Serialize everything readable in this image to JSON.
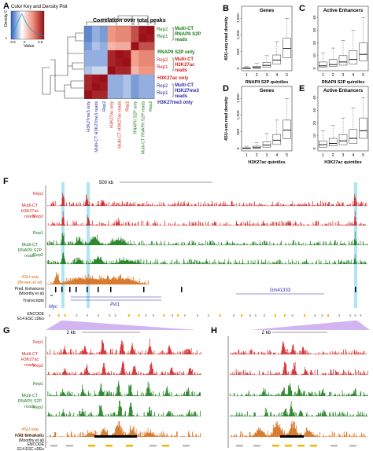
{
  "panels": {
    "A": {
      "letter": "A",
      "title": "Correlation over total peaks",
      "color_key_title": "Color Key and Density Plot",
      "color_key_xlabel": "Value",
      "color_key_ylabel": "Density",
      "color_key_ticks": [
        "-0.5",
        "0",
        "0.5"
      ],
      "density_ticks": [
        "0",
        "15"
      ],
      "row_labels": [
        "Rep2",
        "Rep1",
        "",
        "Rep2",
        "Rep1",
        "",
        "Rep2",
        "Rep1"
      ],
      "row_groups": [
        {
          "lines": [
            "Multi-CT",
            "RNAPII S2P",
            "reads"
          ],
          "color": "#1a7a1a"
        },
        {
          "lines": [
            "RNAPII S2P only"
          ],
          "color": "#1a7a1a"
        },
        {
          "lines": [
            "Multi-CT",
            "H3K27ac",
            "reads"
          ],
          "color": "#d11f1f"
        },
        {
          "lines": [
            "H3K27ac only"
          ],
          "color": "#d11f1f"
        },
        {
          "lines": [
            "Multi-CT",
            "H3K27me3",
            "reads"
          ],
          "color": "#2a2aa8"
        },
        {
          "lines": [
            "H3K27me3 only"
          ],
          "color": "#2a2aa8"
        }
      ],
      "col_labels": [
        {
          "text": "H3K27me3 only",
          "color": "#2a2aa8"
        },
        {
          "text": "Multi-CT H3K27me3 reads",
          "color": "#2a2aa8"
        },
        {
          "text": "Rep2",
          "color": "#2a2aa8"
        },
        {
          "text": "H3K27ac only",
          "color": "#d11f1f"
        },
        {
          "text": "Multi-CT H3K27ac reads",
          "color": "#d11f1f"
        },
        {
          "text": "Rep2",
          "color": "#d11f1f"
        },
        {
          "text": "RNAPII S2P only",
          "color": "#1a7a1a"
        },
        {
          "text": "Multi-CT RNAPII S2P reads",
          "color": "#1a7a1a"
        },
        {
          "text": "Rep2",
          "color": "#1a7a1a"
        }
      ],
      "heatmap": [
        [
          -0.3,
          -0.2,
          -0.25,
          0.5,
          0.55,
          0.55,
          0.75,
          0.95,
          0.98
        ],
        [
          -0.3,
          -0.2,
          -0.25,
          0.5,
          0.55,
          0.55,
          0.75,
          0.98,
          0.95
        ],
        [
          -0.25,
          -0.15,
          -0.2,
          0.35,
          0.4,
          0.4,
          0.98,
          0.75,
          0.75
        ],
        [
          -0.2,
          -0.2,
          -0.2,
          0.9,
          0.98,
          0.95,
          0.45,
          0.55,
          0.55
        ],
        [
          -0.2,
          -0.2,
          -0.2,
          0.9,
          0.95,
          0.98,
          0.45,
          0.55,
          0.55
        ],
        [
          -0.15,
          -0.1,
          -0.1,
          0.98,
          0.9,
          0.9,
          0.35,
          0.5,
          0.5
        ],
        [
          0.9,
          0.95,
          0.98,
          -0.2,
          -0.2,
          -0.15,
          -0.25,
          -0.2,
          -0.2
        ],
        [
          0.9,
          0.98,
          0.95,
          -0.2,
          -0.2,
          -0.15,
          -0.25,
          -0.2,
          -0.2
        ],
        [
          0.98,
          0.9,
          0.9,
          -0.2,
          -0.2,
          -0.15,
          -0.25,
          -0.2,
          -0.2
        ]
      ]
    },
    "boxplots": [
      {
        "letter": "B",
        "title": "Genes",
        "xlabel": "RNAPII S2P quintiles",
        "ylabel": "4SU-seq read density",
        "yticks": [
          "0",
          "500",
          "1,000",
          "1,500"
        ],
        "ymax": 1600,
        "chart_data": {
          "type": "box",
          "categories": [
            "1",
            "2",
            "3",
            "4",
            "5"
          ],
          "medians": [
            5,
            20,
            90,
            250,
            600
          ],
          "q1": [
            0,
            5,
            40,
            130,
            320
          ],
          "q3": [
            15,
            60,
            180,
            400,
            900
          ],
          "whisker_high": [
            60,
            150,
            380,
            800,
            1500
          ]
        }
      },
      {
        "letter": "C",
        "title": "Active Enhancers",
        "xlabel": "RNAPII S2P quintiles",
        "ylabel": "",
        "yticks": [
          "0",
          "10",
          "20",
          "30",
          "40"
        ],
        "ymax": 42,
        "chart_data": {
          "type": "box",
          "categories": [
            "1",
            "2",
            "3",
            "4",
            "5"
          ],
          "medians": [
            2,
            3,
            5,
            7,
            11
          ],
          "q1": [
            1,
            1.5,
            2.5,
            3.5,
            6
          ],
          "q3": [
            5,
            7,
            10,
            14,
            20
          ],
          "whisker_high": [
            12,
            16,
            22,
            30,
            40
          ]
        }
      },
      {
        "letter": "D",
        "title": "Genes",
        "xlabel": "H3K27ac quintiles",
        "ylabel": "4SU-seq read density",
        "yticks": [
          "0",
          "500",
          "1,000",
          "1,500"
        ],
        "ymax": 1600,
        "chart_data": {
          "type": "box",
          "categories": [
            "1",
            "2",
            "3",
            "4",
            "5"
          ],
          "medians": [
            5,
            25,
            100,
            250,
            550
          ],
          "q1": [
            0,
            8,
            40,
            120,
            300
          ],
          "q3": [
            20,
            70,
            200,
            420,
            850
          ],
          "whisker_high": [
            70,
            170,
            450,
            850,
            1500
          ]
        }
      },
      {
        "letter": "E",
        "title": "Active Enhancers",
        "xlabel": "H3K27ac quintiles",
        "ylabel": "",
        "yticks": [
          "0",
          "10",
          "20",
          "30",
          "40"
        ],
        "ymax": 42,
        "chart_data": {
          "type": "box",
          "categories": [
            "1",
            "2",
            "3",
            "4",
            "5"
          ],
          "medians": [
            3,
            4,
            6,
            8,
            14
          ],
          "q1": [
            1,
            2,
            3,
            4,
            8
          ],
          "q3": [
            6,
            8,
            11,
            15,
            24
          ],
          "whisker_high": [
            14,
            18,
            24,
            32,
            40
          ]
        }
      }
    ],
    "F": {
      "letter": "F",
      "scale_label": "500 kb",
      "tracks": [
        {
          "group": [
            "Multi-CT",
            "H3K27ac",
            "reads"
          ],
          "rep": "Rep1",
          "color": "#d11f1f"
        },
        {
          "group": [],
          "rep": "Rep2",
          "color": "#d11f1f"
        },
        {
          "group": [
            "Multi-CT",
            "RNAPII S2P",
            "reads"
          ],
          "rep": "Rep1",
          "color": "#1a7a1a"
        },
        {
          "group": [],
          "rep": "Rep2",
          "color": "#1a7a1a"
        },
        {
          "group": [
            "4SU-seq",
            "(Brown et al)"
          ],
          "rep": "",
          "color": "#d46a14"
        }
      ],
      "pred_label": [
        "Pred. Enhancers",
        "(Moorthy et al)"
      ],
      "transcripts_label": "Transcripts",
      "genes": [
        "Myc",
        "Pvt1",
        "Gm41333"
      ],
      "encode_label": [
        "ENCODE",
        "E14 ESC cDEs"
      ]
    },
    "G": {
      "letter": "G",
      "scale_label": "2 kb",
      "tracks": [
        {
          "group": [
            "Multi-CT",
            "H3K27ac",
            "reads"
          ],
          "rep": "Rep1",
          "color": "#d11f1f"
        },
        {
          "group": [],
          "rep": "Rep2",
          "color": "#d11f1f"
        },
        {
          "group": [
            "Multi-CT",
            "RNAPII S2P",
            "reads"
          ],
          "rep": "Rep1",
          "color": "#1a7a1a"
        },
        {
          "group": [],
          "rep": "Rep2",
          "color": "#1a7a1a"
        },
        {
          "group": [
            "4SU-seq",
            "(Brown et al)"
          ],
          "rep": "",
          "color": "#d46a14"
        }
      ],
      "pred_label": [
        "Pred. Enhancers",
        "(Moorthy et al)"
      ],
      "encode_label": [
        "ENCODE",
        "E14 ESC cDEs"
      ]
    },
    "H": {
      "letter": "H",
      "scale_label": "2 kb"
    }
  }
}
